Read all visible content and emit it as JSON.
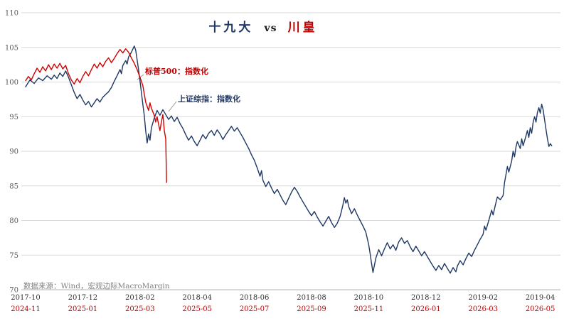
{
  "title": {
    "left": "十九大",
    "mid": "vs",
    "right": "川皇"
  },
  "annotations": {
    "sp500": "标普500：指数化",
    "sse": "上证综指：指数化"
  },
  "source": "数据来源：Wind，宏观边际MacroMargin",
  "colors": {
    "navy": "#1f3864",
    "red_line": "#d40000",
    "red_text": "#c00000",
    "grid": "#d9d9d9",
    "axis": "#b5b5b5",
    "tick_gray": "#595959",
    "tick_black": "#333333"
  },
  "chart_data": {
    "type": "line",
    "title": "十九大 vs 川皇",
    "xlabel": "",
    "ylabel": "",
    "ylim": [
      70,
      110
    ],
    "yticks": [
      70,
      75,
      80,
      85,
      90,
      95,
      100,
      105,
      110
    ],
    "grid": true,
    "xtick_months": [
      0,
      2,
      4,
      6,
      8,
      10,
      12,
      14,
      16,
      18
    ],
    "xticks_primary": [
      "2017-10",
      "2017-12",
      "2018-02",
      "2018-04",
      "2018-06",
      "2018-08",
      "2018-10",
      "2018-12",
      "2019-02",
      "2019-04"
    ],
    "xticks_secondary": [
      "2024-11",
      "2025-01",
      "2025-03",
      "2025-05",
      "2025-07",
      "2025-09",
      "2025-11",
      "2026-01",
      "2026-03",
      "2026-05"
    ],
    "series": [
      {
        "id": "sse",
        "name": "上证综指：指数化",
        "color": "#1f3864",
        "points": [
          [
            0,
            99.3
          ],
          [
            0.15,
            100.3
          ],
          [
            0.3,
            99.8
          ],
          [
            0.45,
            100.6
          ],
          [
            0.6,
            100.2
          ],
          [
            0.75,
            100.9
          ],
          [
            0.9,
            100.4
          ],
          [
            1.0,
            101.0
          ],
          [
            1.1,
            100.5
          ],
          [
            1.2,
            101.3
          ],
          [
            1.3,
            100.8
          ],
          [
            1.4,
            101.6
          ],
          [
            1.5,
            100.7
          ],
          [
            1.6,
            99.6
          ],
          [
            1.7,
            98.5
          ],
          [
            1.8,
            97.6
          ],
          [
            1.9,
            98.2
          ],
          [
            2.0,
            97.4
          ],
          [
            2.1,
            96.7
          ],
          [
            2.2,
            97.2
          ],
          [
            2.3,
            96.4
          ],
          [
            2.4,
            97.0
          ],
          [
            2.5,
            97.6
          ],
          [
            2.6,
            97.1
          ],
          [
            2.7,
            97.8
          ],
          [
            2.8,
            98.2
          ],
          [
            2.9,
            98.6
          ],
          [
            3.0,
            99.2
          ],
          [
            3.1,
            100.1
          ],
          [
            3.2,
            100.9
          ],
          [
            3.3,
            101.8
          ],
          [
            3.35,
            101.2
          ],
          [
            3.4,
            102.4
          ],
          [
            3.5,
            103.1
          ],
          [
            3.55,
            102.6
          ],
          [
            3.6,
            103.6
          ],
          [
            3.7,
            104.3
          ],
          [
            3.8,
            105.2
          ],
          [
            3.85,
            104.6
          ],
          [
            3.9,
            103.2
          ],
          [
            3.95,
            101.8
          ],
          [
            4.0,
            100.2
          ],
          [
            4.05,
            98.5
          ],
          [
            4.1,
            96.8
          ],
          [
            4.15,
            95.2
          ],
          [
            4.2,
            93.0
          ],
          [
            4.25,
            91.2
          ],
          [
            4.3,
            92.5
          ],
          [
            4.35,
            91.6
          ],
          [
            4.4,
            93.4
          ],
          [
            4.5,
            94.8
          ],
          [
            4.6,
            95.9
          ],
          [
            4.7,
            95.2
          ],
          [
            4.8,
            96.0
          ],
          [
            4.9,
            95.3
          ],
          [
            5.0,
            94.6
          ],
          [
            5.1,
            95.1
          ],
          [
            5.2,
            94.3
          ],
          [
            5.3,
            94.9
          ],
          [
            5.4,
            94.0
          ],
          [
            5.5,
            93.3
          ],
          [
            5.6,
            92.4
          ],
          [
            5.7,
            91.6
          ],
          [
            5.8,
            92.2
          ],
          [
            5.9,
            91.4
          ],
          [
            6.0,
            90.8
          ],
          [
            6.1,
            91.6
          ],
          [
            6.2,
            92.4
          ],
          [
            6.3,
            91.8
          ],
          [
            6.4,
            92.6
          ],
          [
            6.5,
            93.0
          ],
          [
            6.6,
            92.3
          ],
          [
            6.7,
            93.1
          ],
          [
            6.8,
            92.5
          ],
          [
            6.9,
            91.7
          ],
          [
            7.0,
            92.4
          ],
          [
            7.1,
            93.0
          ],
          [
            7.2,
            93.6
          ],
          [
            7.3,
            92.9
          ],
          [
            7.4,
            93.4
          ],
          [
            7.5,
            92.7
          ],
          [
            7.6,
            92.0
          ],
          [
            7.7,
            91.2
          ],
          [
            7.8,
            90.4
          ],
          [
            7.9,
            89.5
          ],
          [
            8.0,
            88.7
          ],
          [
            8.1,
            87.6
          ],
          [
            8.2,
            86.4
          ],
          [
            8.25,
            87.2
          ],
          [
            8.3,
            85.8
          ],
          [
            8.4,
            84.9
          ],
          [
            8.5,
            85.6
          ],
          [
            8.6,
            84.7
          ],
          [
            8.7,
            83.9
          ],
          [
            8.8,
            84.5
          ],
          [
            8.9,
            83.7
          ],
          [
            9.0,
            82.9
          ],
          [
            9.1,
            82.3
          ],
          [
            9.2,
            83.2
          ],
          [
            9.3,
            84.1
          ],
          [
            9.4,
            84.8
          ],
          [
            9.5,
            84.2
          ],
          [
            9.6,
            83.4
          ],
          [
            9.7,
            82.7
          ],
          [
            9.8,
            82.0
          ],
          [
            9.9,
            81.3
          ],
          [
            10.0,
            80.7
          ],
          [
            10.1,
            81.3
          ],
          [
            10.2,
            80.5
          ],
          [
            10.3,
            79.8
          ],
          [
            10.4,
            79.2
          ],
          [
            10.5,
            79.9
          ],
          [
            10.6,
            80.6
          ],
          [
            10.7,
            79.7
          ],
          [
            10.8,
            79.0
          ],
          [
            10.9,
            79.6
          ],
          [
            11.0,
            80.6
          ],
          [
            11.05,
            81.4
          ],
          [
            11.1,
            82.3
          ],
          [
            11.15,
            83.3
          ],
          [
            11.2,
            82.5
          ],
          [
            11.25,
            83.0
          ],
          [
            11.3,
            82.0
          ],
          [
            11.4,
            81.0
          ],
          [
            11.5,
            81.7
          ],
          [
            11.6,
            80.8
          ],
          [
            11.7,
            80.0
          ],
          [
            11.8,
            79.2
          ],
          [
            11.9,
            78.3
          ],
          [
            12.0,
            76.5
          ],
          [
            12.05,
            75.2
          ],
          [
            12.1,
            73.8
          ],
          [
            12.15,
            72.5
          ],
          [
            12.25,
            74.6
          ],
          [
            12.35,
            75.8
          ],
          [
            12.45,
            74.9
          ],
          [
            12.55,
            75.9
          ],
          [
            12.65,
            76.8
          ],
          [
            12.75,
            75.9
          ],
          [
            12.85,
            76.5
          ],
          [
            12.95,
            75.7
          ],
          [
            13.05,
            76.9
          ],
          [
            13.15,
            77.5
          ],
          [
            13.25,
            76.7
          ],
          [
            13.35,
            77.1
          ],
          [
            13.45,
            76.2
          ],
          [
            13.55,
            75.5
          ],
          [
            13.65,
            76.3
          ],
          [
            13.75,
            75.6
          ],
          [
            13.85,
            74.9
          ],
          [
            13.95,
            75.5
          ],
          [
            14.05,
            74.8
          ],
          [
            14.15,
            74.1
          ],
          [
            14.25,
            73.4
          ],
          [
            14.35,
            72.8
          ],
          [
            14.45,
            73.5
          ],
          [
            14.55,
            72.9
          ],
          [
            14.65,
            73.8
          ],
          [
            14.75,
            73.1
          ],
          [
            14.85,
            72.4
          ],
          [
            14.95,
            73.2
          ],
          [
            15.05,
            72.6
          ],
          [
            15.1,
            73.4
          ],
          [
            15.2,
            74.2
          ],
          [
            15.3,
            73.6
          ],
          [
            15.4,
            74.5
          ],
          [
            15.5,
            75.3
          ],
          [
            15.6,
            74.8
          ],
          [
            15.7,
            75.7
          ],
          [
            15.8,
            76.5
          ],
          [
            15.9,
            77.3
          ],
          [
            16.0,
            78.0
          ],
          [
            16.05,
            79.2
          ],
          [
            16.1,
            78.6
          ],
          [
            16.2,
            80.0
          ],
          [
            16.3,
            81.5
          ],
          [
            16.35,
            80.8
          ],
          [
            16.45,
            82.6
          ],
          [
            16.5,
            83.4
          ],
          [
            16.6,
            83.0
          ],
          [
            16.7,
            83.6
          ],
          [
            16.75,
            85.5
          ],
          [
            16.85,
            87.8
          ],
          [
            16.9,
            87.0
          ],
          [
            17.0,
            88.6
          ],
          [
            17.05,
            90.0
          ],
          [
            17.1,
            89.2
          ],
          [
            17.15,
            90.6
          ],
          [
            17.2,
            91.4
          ],
          [
            17.3,
            90.4
          ],
          [
            17.35,
            91.8
          ],
          [
            17.4,
            90.8
          ],
          [
            17.5,
            92.2
          ],
          [
            17.55,
            93.0
          ],
          [
            17.6,
            92.0
          ],
          [
            17.65,
            93.4
          ],
          [
            17.7,
            92.6
          ],
          [
            17.75,
            94.2
          ],
          [
            17.8,
            95.0
          ],
          [
            17.85,
            94.2
          ],
          [
            17.9,
            95.6
          ],
          [
            17.95,
            96.3
          ],
          [
            18.0,
            95.5
          ],
          [
            18.05,
            96.8
          ],
          [
            18.1,
            96.0
          ],
          [
            18.15,
            94.6
          ],
          [
            18.2,
            93.2
          ],
          [
            18.25,
            91.8
          ],
          [
            18.3,
            90.7
          ],
          [
            18.35,
            91.1
          ],
          [
            18.4,
            90.8
          ]
        ]
      },
      {
        "id": "sp500",
        "name": "标普500：指数化",
        "color": "#d40000",
        "points": [
          [
            0,
            100.2
          ],
          [
            0.1,
            100.8
          ],
          [
            0.2,
            100.3
          ],
          [
            0.3,
            101.2
          ],
          [
            0.4,
            102.0
          ],
          [
            0.5,
            101.4
          ],
          [
            0.6,
            102.2
          ],
          [
            0.7,
            101.6
          ],
          [
            0.8,
            102.5
          ],
          [
            0.9,
            101.8
          ],
          [
            1.0,
            102.6
          ],
          [
            1.1,
            102.0
          ],
          [
            1.2,
            102.7
          ],
          [
            1.3,
            101.9
          ],
          [
            1.4,
            102.4
          ],
          [
            1.5,
            101.2
          ],
          [
            1.6,
            100.3
          ],
          [
            1.7,
            99.7
          ],
          [
            1.8,
            100.5
          ],
          [
            1.9,
            99.9
          ],
          [
            2.0,
            100.8
          ],
          [
            2.1,
            101.5
          ],
          [
            2.2,
            100.9
          ],
          [
            2.3,
            101.8
          ],
          [
            2.4,
            102.6
          ],
          [
            2.5,
            102.0
          ],
          [
            2.6,
            102.8
          ],
          [
            2.7,
            102.2
          ],
          [
            2.8,
            103.0
          ],
          [
            2.9,
            103.5
          ],
          [
            3.0,
            102.8
          ],
          [
            3.1,
            103.4
          ],
          [
            3.2,
            104.1
          ],
          [
            3.3,
            104.7
          ],
          [
            3.4,
            104.2
          ],
          [
            3.5,
            104.8
          ],
          [
            3.6,
            104.3
          ],
          [
            3.7,
            103.5
          ],
          [
            3.8,
            102.7
          ],
          [
            3.9,
            101.8
          ],
          [
            4.0,
            100.7
          ],
          [
            4.1,
            99.5
          ],
          [
            4.15,
            98.3
          ],
          [
            4.2,
            97.1
          ],
          [
            4.3,
            95.9
          ],
          [
            4.35,
            97.0
          ],
          [
            4.4,
            96.2
          ],
          [
            4.5,
            95.2
          ],
          [
            4.55,
            94.2
          ],
          [
            4.6,
            95.0
          ],
          [
            4.65,
            93.9
          ],
          [
            4.7,
            93.0
          ],
          [
            4.75,
            94.3
          ],
          [
            4.8,
            95.3
          ],
          [
            4.85,
            93.0
          ],
          [
            4.9,
            91.8
          ],
          [
            4.93,
            85.5
          ]
        ]
      }
    ]
  }
}
